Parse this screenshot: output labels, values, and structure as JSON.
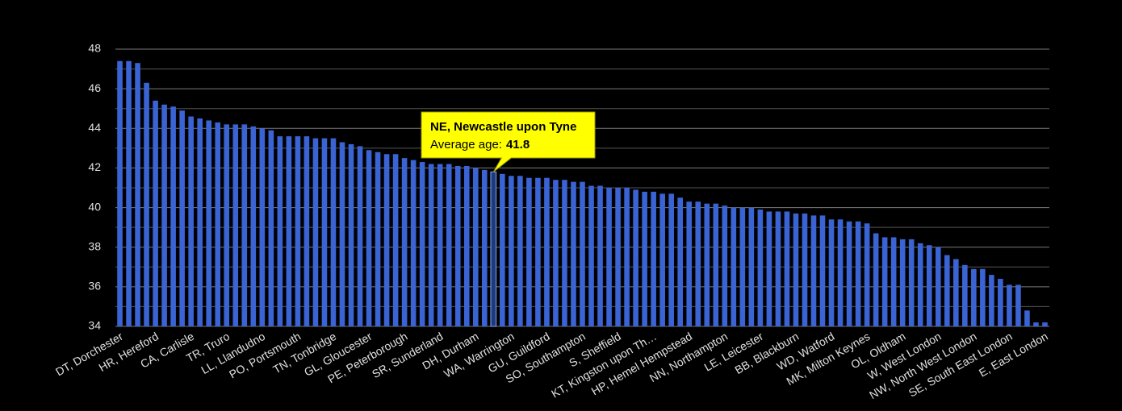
{
  "chart_data": {
    "type": "bar",
    "categories": [
      "DT, Dorchester",
      null,
      null,
      null,
      "HR, Hereford",
      null,
      null,
      null,
      "CA, Carlisle",
      null,
      null,
      null,
      "TR, Truro",
      null,
      null,
      null,
      "LL, Llandudno",
      null,
      null,
      null,
      "PO, Portsmouth",
      null,
      null,
      null,
      "TN, Tonbridge",
      null,
      null,
      null,
      "GL, Gloucester",
      null,
      null,
      null,
      "PE, Peterborough",
      null,
      null,
      null,
      "SR, Sunderland",
      null,
      null,
      null,
      "DH, Durham",
      null,
      null,
      null,
      "WA, Warrington",
      null,
      null,
      null,
      "GU, Guildford",
      null,
      null,
      null,
      "SO, Southampton",
      null,
      null,
      null,
      "S, Sheffield",
      null,
      null,
      null,
      "KT, Kingston upon Th…",
      null,
      null,
      null,
      "HP, Hemel Hempstead",
      null,
      null,
      null,
      "NN, Northampton",
      null,
      null,
      null,
      "LE, Leicester",
      null,
      null,
      null,
      "BB, Blackburn",
      null,
      null,
      null,
      "WD, Watford",
      null,
      null,
      null,
      "MK, Milton Keynes",
      null,
      null,
      null,
      "OL, Oldham",
      null,
      null,
      null,
      "W, West London",
      null,
      null,
      null,
      "NW, North West London",
      null,
      null,
      null,
      "SE, South East London",
      null,
      null,
      null,
      "E, East London"
    ],
    "values": [
      47.4,
      47.4,
      47.3,
      46.3,
      45.4,
      45.2,
      45.1,
      44.9,
      44.6,
      44.5,
      44.4,
      44.3,
      44.2,
      44.2,
      44.2,
      44.1,
      44.0,
      43.9,
      43.6,
      43.6,
      43.6,
      43.6,
      43.5,
      43.5,
      43.5,
      43.3,
      43.2,
      43.1,
      42.9,
      42.8,
      42.7,
      42.7,
      42.5,
      42.4,
      42.3,
      42.2,
      42.2,
      42.2,
      42.1,
      42.1,
      42.0,
      41.9,
      41.8,
      41.7,
      41.6,
      41.6,
      41.5,
      41.5,
      41.5,
      41.4,
      41.4,
      41.3,
      41.3,
      41.1,
      41.1,
      41.0,
      41.0,
      41.0,
      40.9,
      40.8,
      40.8,
      40.7,
      40.7,
      40.5,
      40.3,
      40.3,
      40.2,
      40.2,
      40.1,
      40.0,
      40.0,
      40.0,
      39.9,
      39.8,
      39.8,
      39.8,
      39.7,
      39.7,
      39.6,
      39.6,
      39.4,
      39.4,
      39.3,
      39.3,
      39.2,
      38.7,
      38.5,
      38.5,
      38.4,
      38.4,
      38.2,
      38.1,
      38.0,
      37.6,
      37.4,
      37.1,
      36.9,
      36.9,
      36.6,
      36.4,
      36.1,
      36.1,
      34.8,
      34.2,
      34.2
    ],
    "color": "#3a63d4",
    "ylim": [
      34,
      48
    ],
    "yticks": [
      34,
      36,
      38,
      40,
      42,
      44,
      46,
      48
    ],
    "grid": true,
    "tooltip": {
      "index": 42,
      "title": "NE, Newcastle upon Tyne",
      "label": "Average age:"
    }
  }
}
